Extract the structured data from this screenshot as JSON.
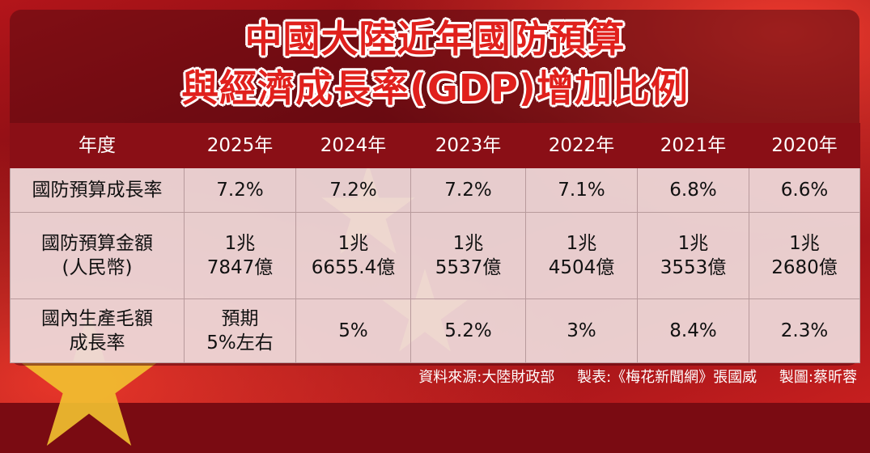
{
  "title": {
    "line1": "中國大陸近年國防預算",
    "line2": "與經濟成長率(GDP)增加比例"
  },
  "table": {
    "headers": [
      "年度",
      "2025年",
      "2024年",
      "2023年",
      "2022年",
      "2021年",
      "2020年"
    ],
    "rows": [
      {
        "label": [
          "國防預算成長率"
        ],
        "cells": [
          [
            "7.2%"
          ],
          [
            "7.2%"
          ],
          [
            "7.2%"
          ],
          [
            "7.1%"
          ],
          [
            "6.8%"
          ],
          [
            "6.6%"
          ]
        ]
      },
      {
        "label": [
          "國防預算金額",
          "(人民幣)"
        ],
        "cells": [
          [
            "1兆",
            "7847億"
          ],
          [
            "1兆",
            "6655.4億"
          ],
          [
            "1兆",
            "5537億"
          ],
          [
            "1兆",
            "4504億"
          ],
          [
            "1兆",
            "3553億"
          ],
          [
            "1兆",
            "2680億"
          ]
        ]
      },
      {
        "label": [
          "國內生產毛額",
          "成長率"
        ],
        "cells": [
          [
            "預期",
            "5%左右"
          ],
          [
            "5%"
          ],
          [
            "5.2%"
          ],
          [
            "3%"
          ],
          [
            "8.4%"
          ],
          [
            "2.3%"
          ]
        ]
      }
    ]
  },
  "footer": {
    "source": "資料來源:大陸財政部",
    "table_by": "製表:《梅花新聞網》張國威",
    "graphic_by": "製圖:蔡昕蓉"
  },
  "colors": {
    "title_red": "#e0201c",
    "header_bg": "#8a0f16",
    "flag_red": "#b3151a",
    "star_gold": "#f2c230"
  }
}
